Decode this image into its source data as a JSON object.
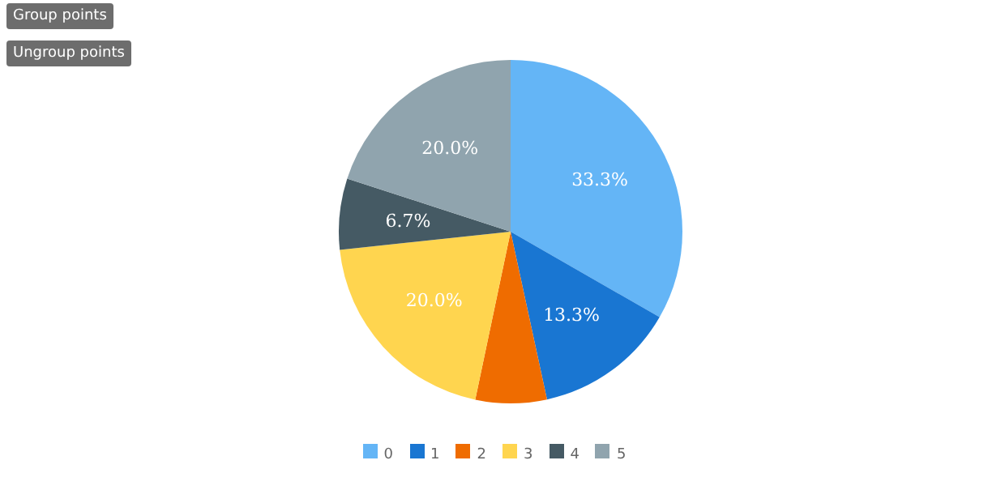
{
  "chart_data": {
    "type": "pie",
    "categories": [
      "0",
      "1",
      "2",
      "3",
      "4",
      "5"
    ],
    "values": [
      33.3,
      13.3,
      6.7,
      20.0,
      6.7,
      20.0
    ],
    "colors": [
      "#64b5f6",
      "#1976d2",
      "#ef6c00",
      "#ffd54f",
      "#455a64",
      "#90a4ae"
    ],
    "value_labels": [
      "33.3%",
      "13.3%",
      null,
      "20.0%",
      "6.7%",
      "20.0%"
    ],
    "legend": "bottom",
    "annotations": [
      "Group points",
      "Ungroup points"
    ]
  }
}
